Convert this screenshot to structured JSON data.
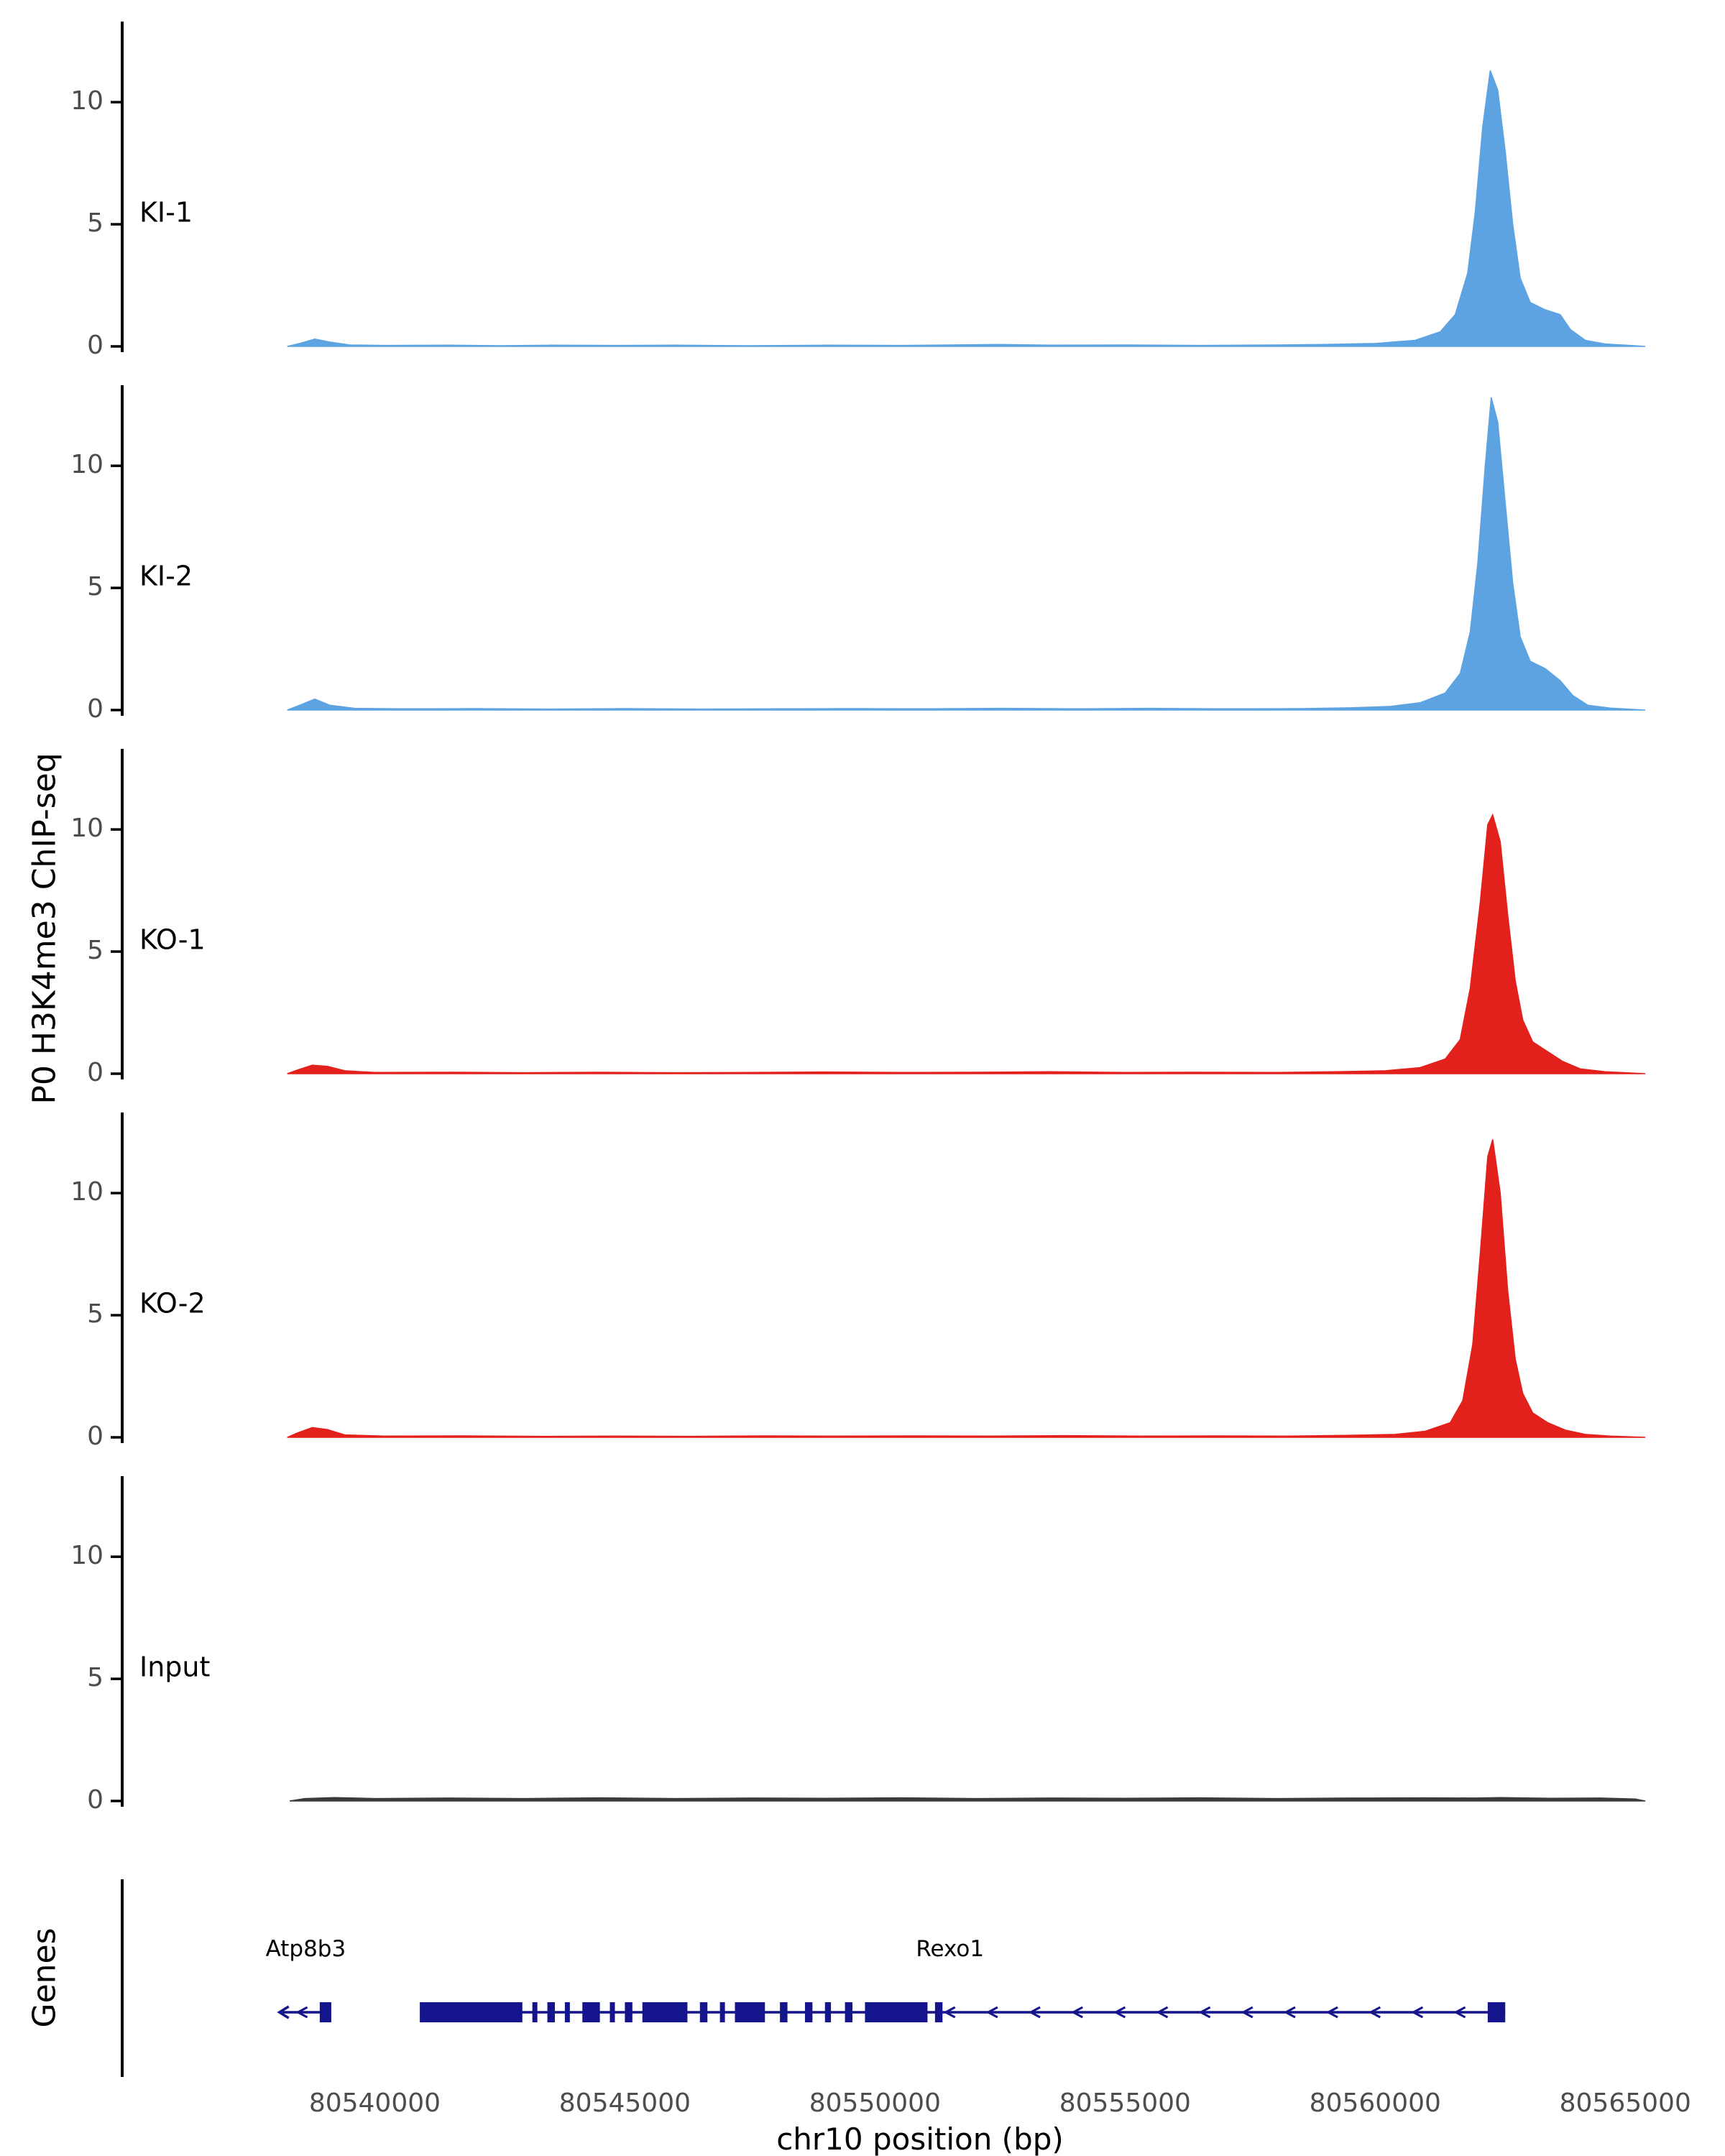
{
  "figure": {
    "ylabel": "P0 H3K4me3 ChIP-seq",
    "genes_label": "Genes",
    "xlabel": "chr10 position (bp)"
  },
  "chart_data": {
    "type": "area",
    "title": "",
    "xlabel": "chr10 position (bp)",
    "ylabel": "P0 H3K4me3 ChIP-seq",
    "xlim": [
      80534950,
      80566850
    ],
    "track_ylim": [
      0,
      13
    ],
    "x_ticks": [
      80540000,
      80545000,
      80550000,
      80555000,
      80560000,
      80565000
    ],
    "y_ticks": [
      0,
      5,
      10
    ],
    "axis_color": "#000000",
    "tick_label_color": "#4d4d4d",
    "grid": false,
    "tracks": [
      {
        "name": "KI-1",
        "color": "#5DA3E1",
        "points": [
          [
            80538250,
            0.0
          ],
          [
            80538500,
            0.12
          ],
          [
            80538800,
            0.3
          ],
          [
            80539100,
            0.18
          ],
          [
            80539500,
            0.06
          ],
          [
            80540200,
            0.04
          ],
          [
            80541500,
            0.05
          ],
          [
            80542500,
            0.03
          ],
          [
            80543500,
            0.05
          ],
          [
            80544800,
            0.04
          ],
          [
            80546000,
            0.05
          ],
          [
            80547500,
            0.03
          ],
          [
            80549000,
            0.05
          ],
          [
            80550500,
            0.04
          ],
          [
            80551500,
            0.06
          ],
          [
            80552500,
            0.08
          ],
          [
            80553500,
            0.05
          ],
          [
            80555000,
            0.06
          ],
          [
            80556500,
            0.04
          ],
          [
            80558000,
            0.06
          ],
          [
            80559000,
            0.08
          ],
          [
            80560000,
            0.12
          ],
          [
            80560800,
            0.25
          ],
          [
            80561300,
            0.6
          ],
          [
            80561600,
            1.3
          ],
          [
            80561850,
            3.0
          ],
          [
            80562000,
            5.5
          ],
          [
            80562150,
            9.0
          ],
          [
            80562300,
            11.3
          ],
          [
            80562450,
            10.5
          ],
          [
            80562600,
            8.0
          ],
          [
            80562750,
            5.0
          ],
          [
            80562900,
            2.8
          ],
          [
            80563100,
            1.8
          ],
          [
            80563400,
            1.5
          ],
          [
            80563700,
            1.3
          ],
          [
            80563900,
            0.7
          ],
          [
            80564200,
            0.25
          ],
          [
            80564600,
            0.1
          ],
          [
            80565100,
            0.04
          ],
          [
            80565400,
            0.0
          ]
        ]
      },
      {
        "name": "KI-2",
        "color": "#5DA3E1",
        "points": [
          [
            80538250,
            0.0
          ],
          [
            80538500,
            0.2
          ],
          [
            80538800,
            0.45
          ],
          [
            80539100,
            0.2
          ],
          [
            80539600,
            0.07
          ],
          [
            80540500,
            0.05
          ],
          [
            80542000,
            0.06
          ],
          [
            80543500,
            0.04
          ],
          [
            80545000,
            0.06
          ],
          [
            80546500,
            0.04
          ],
          [
            80548000,
            0.05
          ],
          [
            80549500,
            0.06
          ],
          [
            80551000,
            0.05
          ],
          [
            80552500,
            0.07
          ],
          [
            80554000,
            0.05
          ],
          [
            80555500,
            0.07
          ],
          [
            80557000,
            0.05
          ],
          [
            80558500,
            0.06
          ],
          [
            80559500,
            0.09
          ],
          [
            80560300,
            0.15
          ],
          [
            80560900,
            0.3
          ],
          [
            80561400,
            0.7
          ],
          [
            80561700,
            1.5
          ],
          [
            80561900,
            3.2
          ],
          [
            80562050,
            6.0
          ],
          [
            80562200,
            10.0
          ],
          [
            80562320,
            12.8
          ],
          [
            80562450,
            11.8
          ],
          [
            80562600,
            8.5
          ],
          [
            80562750,
            5.2
          ],
          [
            80562900,
            3.0
          ],
          [
            80563100,
            2.0
          ],
          [
            80563400,
            1.7
          ],
          [
            80563700,
            1.2
          ],
          [
            80563950,
            0.6
          ],
          [
            80564250,
            0.2
          ],
          [
            80564700,
            0.08
          ],
          [
            80565400,
            0.0
          ]
        ]
      },
      {
        "name": "KO-1",
        "color": "#E3211C",
        "points": [
          [
            80538250,
            0.0
          ],
          [
            80538450,
            0.15
          ],
          [
            80538750,
            0.35
          ],
          [
            80539050,
            0.3
          ],
          [
            80539400,
            0.12
          ],
          [
            80540000,
            0.05
          ],
          [
            80541500,
            0.06
          ],
          [
            80543000,
            0.04
          ],
          [
            80544500,
            0.06
          ],
          [
            80546000,
            0.04
          ],
          [
            80547500,
            0.05
          ],
          [
            80549000,
            0.07
          ],
          [
            80550500,
            0.05
          ],
          [
            80552000,
            0.06
          ],
          [
            80553500,
            0.08
          ],
          [
            80555000,
            0.05
          ],
          [
            80556500,
            0.06
          ],
          [
            80558000,
            0.05
          ],
          [
            80559200,
            0.08
          ],
          [
            80560200,
            0.12
          ],
          [
            80560900,
            0.25
          ],
          [
            80561400,
            0.6
          ],
          [
            80561700,
            1.4
          ],
          [
            80561900,
            3.5
          ],
          [
            80562100,
            7.0
          ],
          [
            80562250,
            10.2
          ],
          [
            80562350,
            10.6
          ],
          [
            80562500,
            9.5
          ],
          [
            80562650,
            6.5
          ],
          [
            80562800,
            3.8
          ],
          [
            80562950,
            2.2
          ],
          [
            80563150,
            1.3
          ],
          [
            80563450,
            0.9
          ],
          [
            80563750,
            0.5
          ],
          [
            80564100,
            0.2
          ],
          [
            80564600,
            0.08
          ],
          [
            80565400,
            0.0
          ]
        ]
      },
      {
        "name": "KO-2",
        "color": "#E3211C",
        "points": [
          [
            80538250,
            0.0
          ],
          [
            80538450,
            0.18
          ],
          [
            80538750,
            0.4
          ],
          [
            80539050,
            0.32
          ],
          [
            80539400,
            0.1
          ],
          [
            80540200,
            0.05
          ],
          [
            80541800,
            0.06
          ],
          [
            80543300,
            0.04
          ],
          [
            80544800,
            0.05
          ],
          [
            80546300,
            0.04
          ],
          [
            80547800,
            0.06
          ],
          [
            80549300,
            0.05
          ],
          [
            80550800,
            0.06
          ],
          [
            80552300,
            0.05
          ],
          [
            80553800,
            0.07
          ],
          [
            80555300,
            0.05
          ],
          [
            80556800,
            0.06
          ],
          [
            80558300,
            0.05
          ],
          [
            80559400,
            0.08
          ],
          [
            80560400,
            0.12
          ],
          [
            80561000,
            0.25
          ],
          [
            80561500,
            0.6
          ],
          [
            80561750,
            1.5
          ],
          [
            80561950,
            3.8
          ],
          [
            80562100,
            7.5
          ],
          [
            80562250,
            11.5
          ],
          [
            80562350,
            12.2
          ],
          [
            80562500,
            10.0
          ],
          [
            80562650,
            6.0
          ],
          [
            80562800,
            3.2
          ],
          [
            80562950,
            1.8
          ],
          [
            80563150,
            1.0
          ],
          [
            80563450,
            0.6
          ],
          [
            80563800,
            0.3
          ],
          [
            80564200,
            0.12
          ],
          [
            80564700,
            0.05
          ],
          [
            80565400,
            0.0
          ]
        ]
      },
      {
        "name": "Input",
        "color": "#3a3a3a",
        "points": [
          [
            80538300,
            0.0
          ],
          [
            80538600,
            0.1
          ],
          [
            80539200,
            0.14
          ],
          [
            80540000,
            0.1
          ],
          [
            80541500,
            0.12
          ],
          [
            80543000,
            0.1
          ],
          [
            80544500,
            0.13
          ],
          [
            80546000,
            0.1
          ],
          [
            80547500,
            0.12
          ],
          [
            80549000,
            0.11
          ],
          [
            80550500,
            0.13
          ],
          [
            80552000,
            0.1
          ],
          [
            80553500,
            0.12
          ],
          [
            80555000,
            0.11
          ],
          [
            80556500,
            0.13
          ],
          [
            80558000,
            0.1
          ],
          [
            80559500,
            0.12
          ],
          [
            80561000,
            0.13
          ],
          [
            80562000,
            0.12
          ],
          [
            80562500,
            0.14
          ],
          [
            80563500,
            0.11
          ],
          [
            80564500,
            0.12
          ],
          [
            80565200,
            0.08
          ],
          [
            80565400,
            0.0
          ]
        ]
      }
    ],
    "genes": {
      "label": "Genes",
      "color": "#14148C",
      "arrow_spacing_bp": 850,
      "items": [
        {
          "name": "Atp8b3",
          "strand": "-",
          "start": 80538150,
          "end": 80539130,
          "exons": [
            [
              80538900,
              80539130
            ]
          ],
          "label_bp": 80538620
        },
        {
          "name": "Rexo1",
          "strand": "-",
          "start": 80540900,
          "end": 80562600,
          "exons": [
            [
              80540900,
              80542950
            ],
            [
              80543150,
              80543250
            ],
            [
              80543450,
              80543600
            ],
            [
              80543800,
              80543900
            ],
            [
              80544150,
              80544500
            ],
            [
              80544700,
              80544800
            ],
            [
              80545000,
              80545150
            ],
            [
              80545350,
              80546250
            ],
            [
              80546500,
              80546650
            ],
            [
              80546900,
              80547000
            ],
            [
              80547200,
              80547800
            ],
            [
              80548100,
              80548250
            ],
            [
              80548600,
              80548750
            ],
            [
              80549000,
              80549120
            ],
            [
              80549400,
              80549550
            ],
            [
              80549800,
              80551050
            ],
            [
              80551200,
              80551350
            ],
            [
              80562250,
              80562600
            ]
          ],
          "label_bp": 80551500
        }
      ]
    }
  }
}
